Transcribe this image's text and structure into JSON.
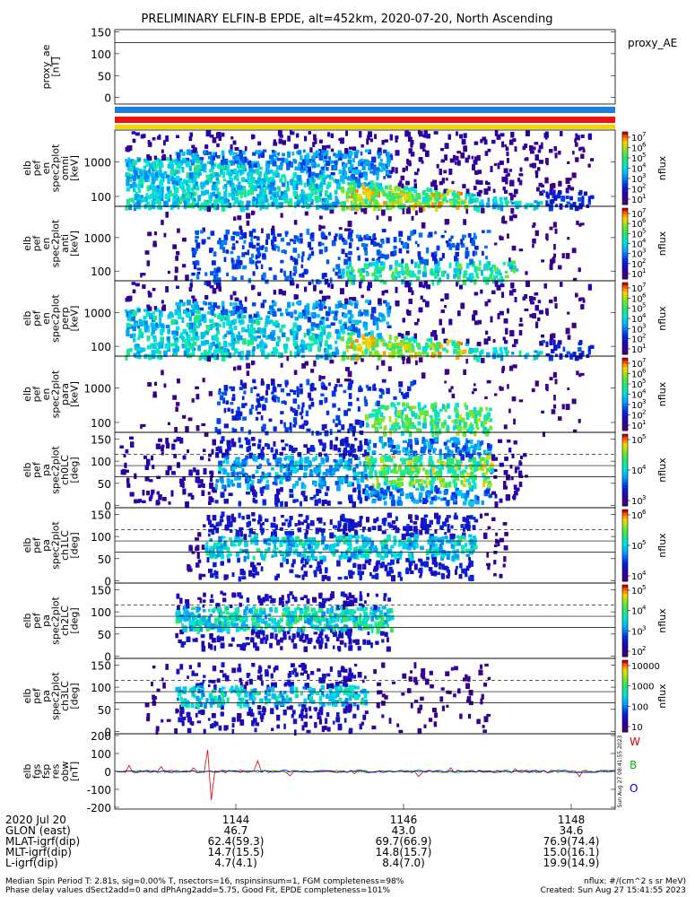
{
  "chart_data": {
    "type": "heatmap",
    "title": "PRELIMINARY ELFIN-B EPDE, alt=452km, 2020-07-20, North Ascending",
    "time_axis": {
      "ticks": [
        "1144",
        "1146",
        "1148"
      ],
      "date_label": "2020 Jul 20",
      "rows": [
        {
          "label": "GLON (east)",
          "values": [
            "46.7",
            "43.0",
            "34.6"
          ]
        },
        {
          "label": "MLAT-igrf(dip)",
          "values": [
            "62.4(59.3)",
            "69.7(66.9)",
            "76.9(74.4)"
          ]
        },
        {
          "label": "MLT-igrf(dip)",
          "values": [
            "14.7(15.5)",
            "14.8(15.7)",
            "15.0(16.1)"
          ]
        },
        {
          "label": "L-igrf(dip)",
          "values": [
            "4.7(4.1)",
            "8.4(7.0)",
            "19.9(14.9)"
          ]
        }
      ]
    },
    "panels": [
      {
        "id": "proxy",
        "ylabel": [
          "proxy_ae",
          "[nT]"
        ],
        "yticks": [
          "150",
          "100",
          "50",
          "0"
        ],
        "right_label": "proxy_AE",
        "ylim": [
          -15,
          155
        ],
        "value": 125
      },
      {
        "id": "omni",
        "ylabel": [
          "elb",
          "pef",
          "en",
          "spec2plot",
          "omni",
          "[keV]"
        ],
        "yticks": [
          "1000",
          "100"
        ],
        "cbar_label": "nflux",
        "cbar_ticks": [
          "10",
          "10",
          "10",
          "10",
          "10",
          "10",
          "10"
        ],
        "cbar_exps": [
          "7",
          "6",
          "5",
          "4",
          "3",
          "2",
          "1"
        ]
      },
      {
        "id": "anti",
        "ylabel": [
          "elb",
          "pef",
          "en",
          "spec2plot",
          "anti",
          "[keV]"
        ],
        "yticks": [
          "1000",
          "100"
        ],
        "cbar_label": "nflux",
        "cbar_ticks": [
          "10",
          "10",
          "10",
          "10",
          "10",
          "10",
          "10"
        ],
        "cbar_exps": [
          "7",
          "6",
          "5",
          "4",
          "3",
          "2",
          "1"
        ]
      },
      {
        "id": "perp",
        "ylabel": [
          "elb",
          "pef",
          "en",
          "spec2plot",
          "perp",
          "[keV]"
        ],
        "yticks": [
          "1000",
          "100"
        ],
        "cbar_label": "nflux",
        "cbar_ticks": [
          "10",
          "10",
          "10",
          "10",
          "10",
          "10",
          "10"
        ],
        "cbar_exps": [
          "7",
          "6",
          "5",
          "4",
          "3",
          "2",
          "1"
        ]
      },
      {
        "id": "para",
        "ylabel": [
          "elb",
          "pef",
          "en",
          "spec2plot",
          "para",
          "[keV]"
        ],
        "yticks": [
          "1000",
          "100"
        ],
        "cbar_label": "nflux",
        "cbar_ticks": [
          "10",
          "10",
          "10",
          "10",
          "10",
          "10",
          "10"
        ],
        "cbar_exps": [
          "7",
          "6",
          "5",
          "4",
          "3",
          "2",
          "1"
        ]
      },
      {
        "id": "ch0",
        "ylabel": [
          "elb",
          "pef",
          "pa",
          "spec2plot",
          "ch0LC",
          "[deg]"
        ],
        "yticks": [
          "150",
          "100",
          "50",
          "0"
        ],
        "cbar_label": "nflux",
        "cbar_ticks": [
          "10",
          "10",
          "10"
        ],
        "cbar_exps": [
          "5",
          "4",
          "3"
        ]
      },
      {
        "id": "ch1",
        "ylabel": [
          "elb",
          "pef",
          "pa",
          "spec2plot",
          "ch1LC",
          "[deg]"
        ],
        "yticks": [
          "150",
          "100",
          "50",
          "0"
        ],
        "cbar_label": "nflux",
        "cbar_ticks": [
          "10",
          "10",
          "10"
        ],
        "cbar_exps": [
          "6",
          "5",
          "4"
        ]
      },
      {
        "id": "ch2",
        "ylabel": [
          "elb",
          "pef",
          "pa",
          "spec2plot",
          "ch2LC",
          "[deg]"
        ],
        "yticks": [
          "150",
          "100",
          "50",
          "0"
        ],
        "cbar_label": "nflux",
        "cbar_ticks": [
          "10",
          "10",
          "10",
          "10"
        ],
        "cbar_exps": [
          "5",
          "4",
          "3",
          "2"
        ]
      },
      {
        "id": "ch3",
        "ylabel": [
          "elb",
          "pef",
          "pa",
          "spec2plot",
          "ch3LC",
          "[deg]"
        ],
        "yticks": [
          "150",
          "100",
          "50",
          "0"
        ],
        "cbar_label": "nflux",
        "cbar_ticks": [
          "10000",
          "1000",
          "100",
          "10"
        ]
      },
      {
        "id": "fgs",
        "ylabel": [
          "elb",
          "fgs",
          "fsp",
          "res",
          "obw",
          "[nT]"
        ],
        "yticks": [
          "200",
          "100",
          "0",
          "-100",
          "-200"
        ],
        "components": [
          {
            "name": "W",
            "color": "#e00000"
          },
          {
            "name": "B",
            "color": "#00c000"
          },
          {
            "name": "O",
            "color": "#0000e0"
          }
        ],
        "stamp": "Sun Aug 27 08:41:55 2023"
      }
    ]
  },
  "footer": {
    "left_line1": "Median Spin Period T: 2.81s, sig=0.00% T, nsectors=16, nspinsinsum=1, FGM completeness=98%",
    "left_line2": "Phase delay values dSect2add=0 and dPhAng2add=5.75, Good Fit, EPDE completeness=101%",
    "right_line1": "nflux: #/(cm^2 s sr MeV)",
    "right_line2": "Created: Sun Aug 27 15:41:55 2023"
  },
  "colors": {
    "state_bar_blue": "#1e7fe0",
    "state_bar_red": "#f01010",
    "state_bar_yellow": "#f8d800"
  }
}
